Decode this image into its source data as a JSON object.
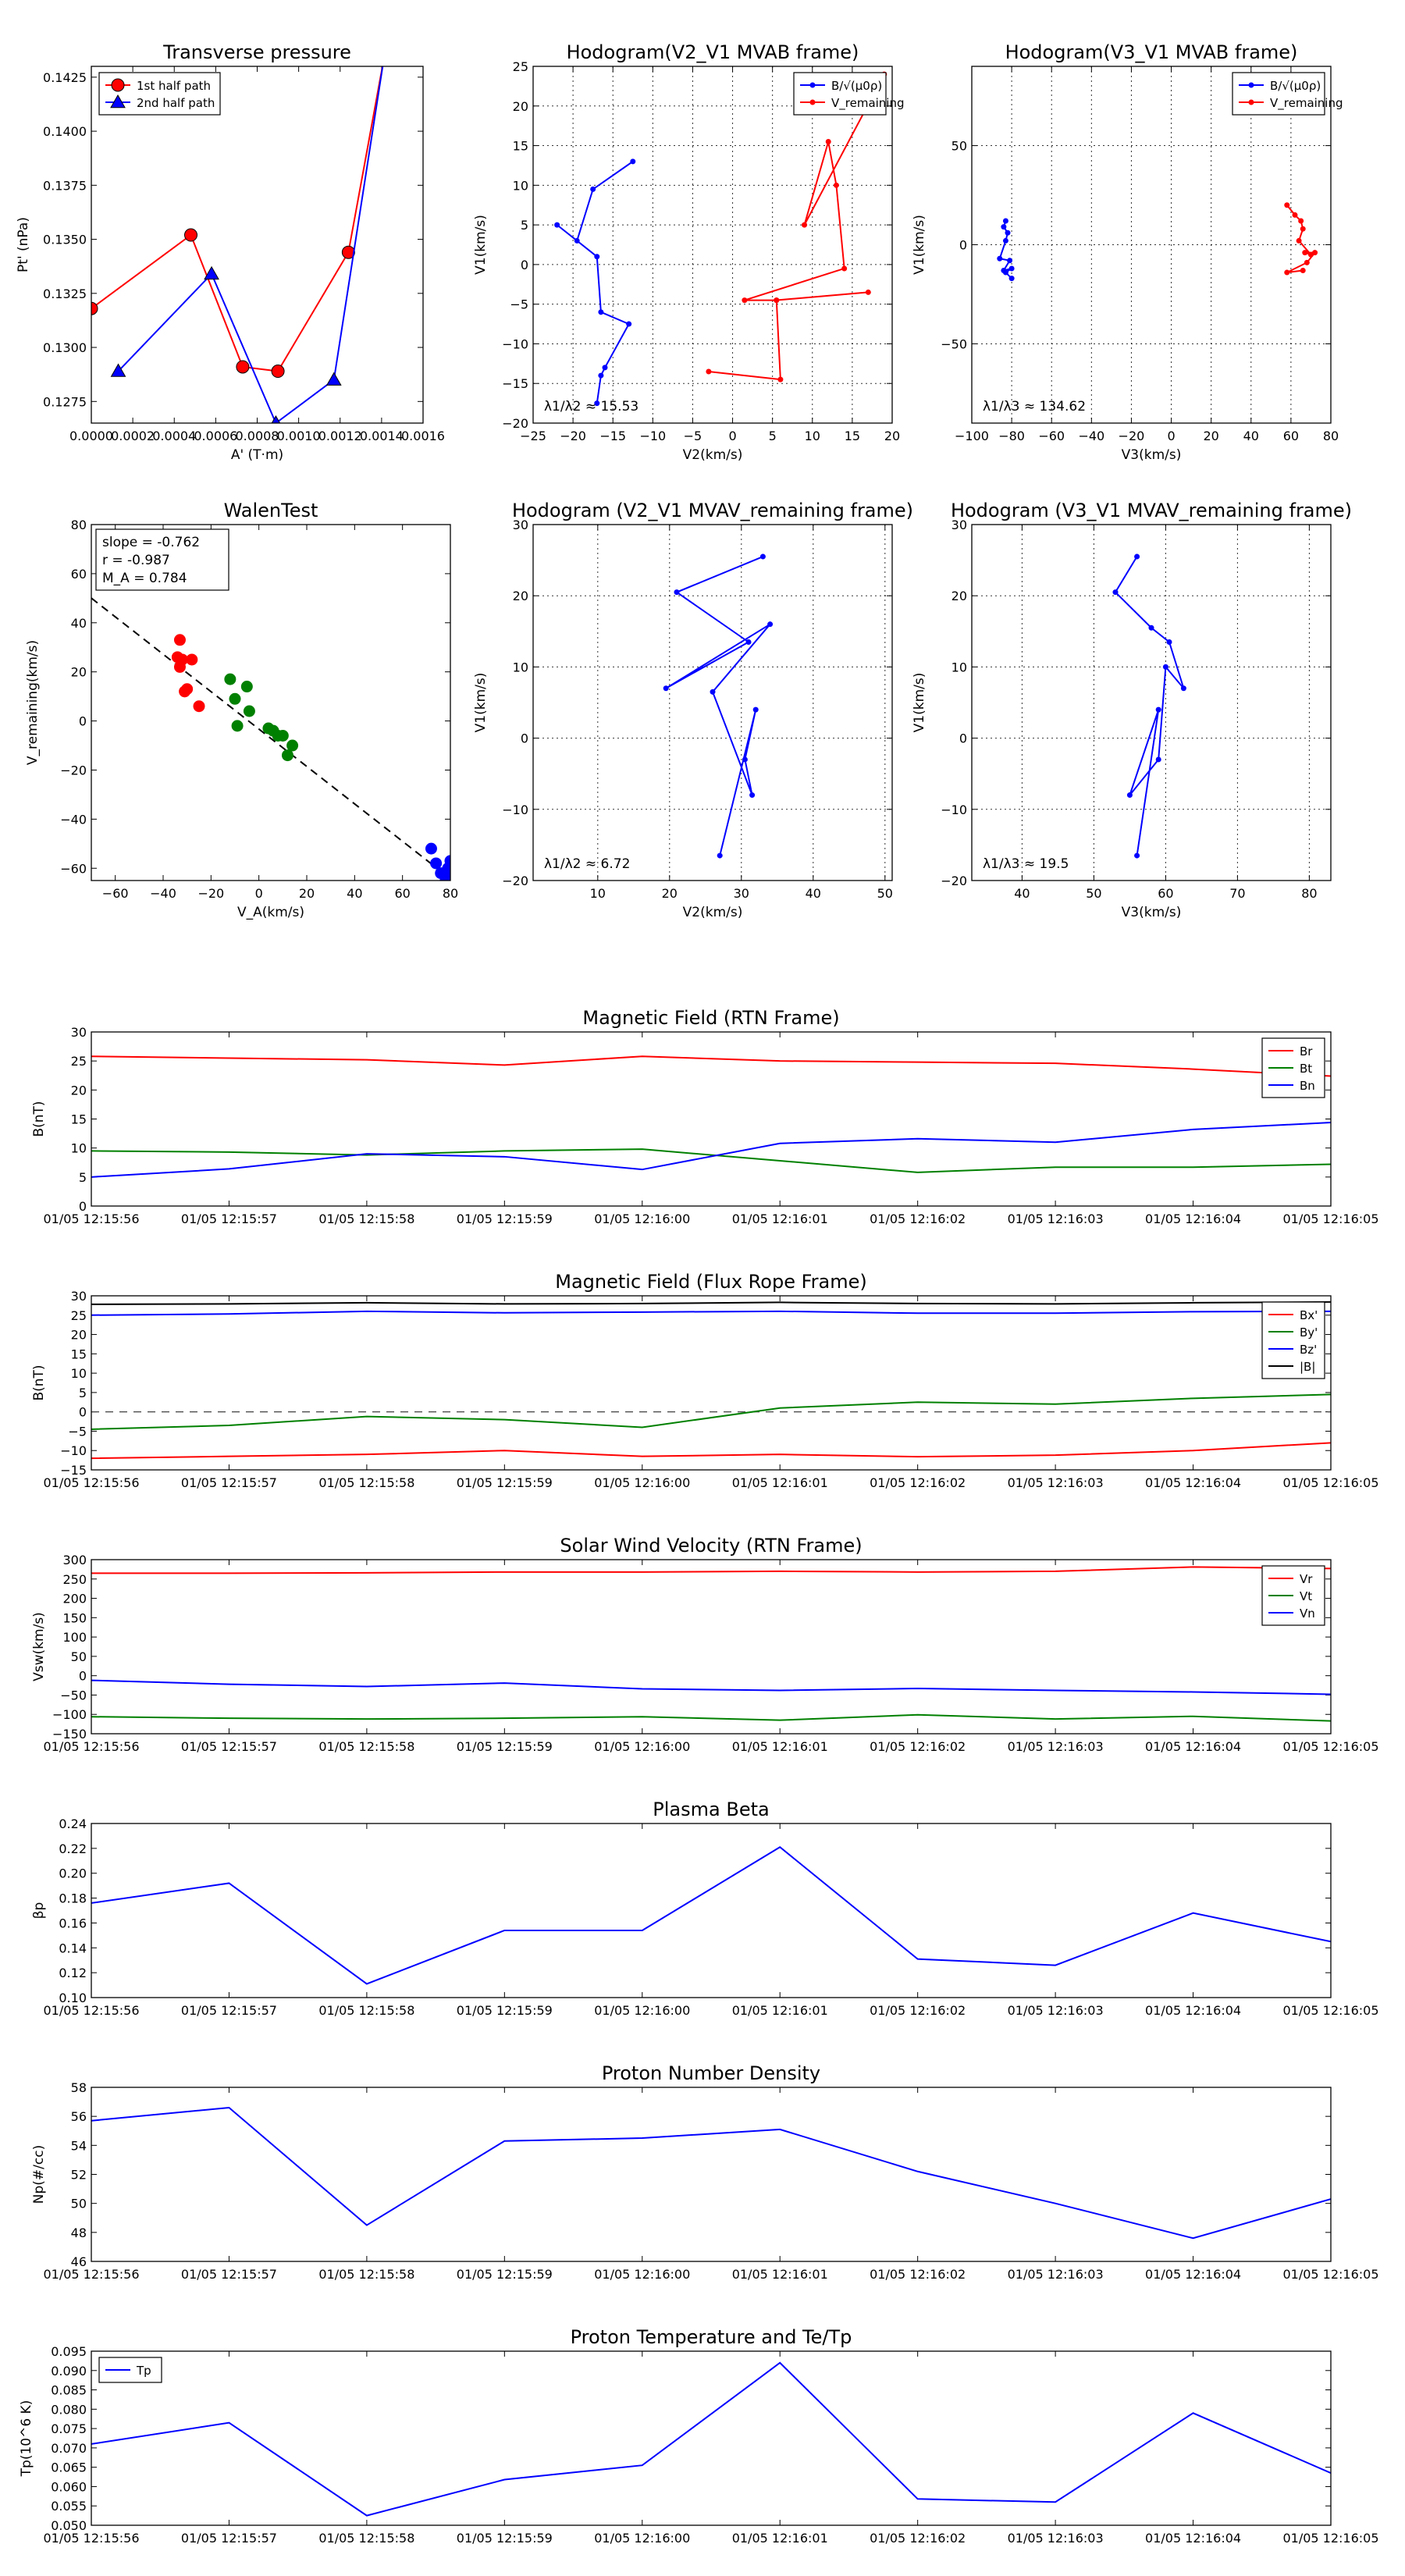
{
  "chart_data": [
    {
      "id": "p_tp",
      "type": "line",
      "title": "Transverse pressure",
      "xlabel": "A' (T·m)",
      "ylabel": "Pt' (nPa)",
      "xlim": [
        0,
        0.0016
      ],
      "ylim": [
        0.1265,
        0.143
      ],
      "xticks": [
        0,
        0.0002,
        0.0004,
        0.0006,
        0.0008,
        0.001,
        0.0012,
        0.0014,
        0.0016
      ],
      "xtick_labels": [
        "0.0000",
        "0.0002",
        "0.0004",
        "0.0006",
        "0.0008",
        "0.0010",
        "0.0012",
        "0.0014",
        "0.0016"
      ],
      "yticks": [
        0.1275,
        0.13,
        0.1325,
        0.135,
        0.1375,
        0.14,
        0.1425
      ],
      "ytick_labels": [
        "0.1275",
        "0.1300",
        "0.1325",
        "0.1350",
        "0.1375",
        "0.1400",
        "0.1425"
      ],
      "legend": {
        "placement": "top-left",
        "entries": [
          "1st half path",
          "2nd half path"
        ]
      },
      "series": [
        {
          "name": "1st half path",
          "color": "#ff0000",
          "marker": "circle",
          "x": [
            0.0,
            0.00048,
            0.00073,
            0.0009,
            0.00124,
            0.00141
          ],
          "y": [
            0.1318,
            0.1352,
            0.1291,
            0.1289,
            0.1344,
            0.1433
          ]
        },
        {
          "name": "2nd half path",
          "color": "#0000ff",
          "marker": "triangle",
          "x": [
            0.00013,
            0.00058,
            0.00089,
            0.00117,
            0.00141
          ],
          "y": [
            0.1289,
            0.1334,
            0.1265,
            0.1285,
            0.1433
          ]
        }
      ]
    },
    {
      "id": "p_h1",
      "type": "line",
      "title": "Hodogram(V2_V1 MVAB frame)",
      "xlabel": "V2(km/s)",
      "ylabel": "V1(km/s)",
      "xlim": [
        -25,
        20
      ],
      "ylim": [
        -20,
        25
      ],
      "xticks": [
        -25,
        -20,
        -15,
        -10,
        -5,
        0,
        5,
        10,
        15,
        20
      ],
      "yticks": [
        -20,
        -15,
        -10,
        -5,
        0,
        5,
        10,
        15,
        20,
        25
      ],
      "grid": true,
      "annotation": "λ1/λ2 ≈ 15.53",
      "legend": {
        "placement": "top-right",
        "entries": [
          "B/√(μ0ρ)",
          "V_remaining"
        ]
      },
      "series": [
        {
          "name": "B/√(μ0ρ)",
          "color": "#0000ff",
          "x": [
            -12.5,
            -17.5,
            -19.5,
            -22,
            -17,
            -16.5,
            -13,
            -16,
            -16.5,
            -17
          ],
          "y": [
            13,
            9.5,
            3,
            5,
            1,
            -6,
            -7.5,
            -13,
            -14,
            -17.5
          ]
        },
        {
          "name": "V_remaining",
          "color": "#ff0000",
          "x": [
            19,
            9,
            12,
            13,
            14,
            1.5,
            5.5,
            17,
            5.5,
            6,
            -3
          ],
          "y": [
            24,
            5,
            15.5,
            10,
            -0.5,
            -4.5,
            -4.5,
            -3.5,
            -4.5,
            -14.5,
            -13.5
          ]
        }
      ]
    },
    {
      "id": "p_h2",
      "type": "line",
      "title": "Hodogram(V3_V1 MVAB frame)",
      "xlabel": "V3(km/s)",
      "ylabel": "V1(km/s)",
      "xlim": [
        -100,
        80
      ],
      "ylim": [
        -90,
        90
      ],
      "xticks": [
        -100,
        -80,
        -60,
        -40,
        -20,
        0,
        20,
        40,
        60,
        80
      ],
      "yticks": [
        -50,
        0,
        50
      ],
      "grid": true,
      "annotation": "λ1/λ3 ≈ 134.62",
      "legend": {
        "placement": "top-right",
        "entries": [
          "B/√(μ0ρ)",
          "V_remaining"
        ]
      },
      "series": [
        {
          "name": "B/√(μ0ρ)",
          "color": "#0000ff",
          "x": [
            -83,
            -84,
            -82,
            -83,
            -86,
            -81,
            -84,
            -80,
            -83,
            -80
          ],
          "y": [
            12,
            9,
            6,
            2,
            -7,
            -8,
            -13,
            -12,
            -14,
            -17
          ]
        },
        {
          "name": "V_remaining",
          "color": "#ff0000",
          "x": [
            58,
            62,
            65,
            66,
            64,
            70,
            67,
            72,
            68,
            58,
            66
          ],
          "y": [
            20,
            15,
            12,
            8,
            2,
            -5,
            -4,
            -4,
            -9,
            -14,
            -13
          ]
        }
      ]
    },
    {
      "id": "p_walen",
      "type": "scatter",
      "title": "WalenTest",
      "xlabel": "V_A(km/s)",
      "ylabel": "V_remaining(km/s)",
      "xlim": [
        -70,
        80
      ],
      "ylim": [
        -65,
        80
      ],
      "xticks": [
        -60,
        -40,
        -20,
        0,
        20,
        40,
        60,
        80
      ],
      "yticks": [
        -60,
        -40,
        -20,
        0,
        20,
        40,
        60,
        80
      ],
      "stats": [
        "slope = -0.762",
        "r = -0.987",
        "M_A = 0.784"
      ],
      "fit_line": {
        "slope": -0.762,
        "intercept": -3.3
      },
      "series": [
        {
          "name": "red",
          "color": "#ff0000",
          "x": [
            -33,
            -34,
            -32,
            -33,
            -31,
            -30,
            -28,
            -25
          ],
          "y": [
            33,
            26,
            25,
            22,
            12,
            13,
            25,
            6
          ]
        },
        {
          "name": "green",
          "color": "#008000",
          "x": [
            -12,
            -10,
            -9,
            -5,
            -4,
            4,
            6,
            8,
            10,
            12,
            14
          ],
          "y": [
            17,
            9,
            -2,
            14,
            4,
            -3,
            -4,
            -6,
            -6,
            -14,
            -10
          ]
        },
        {
          "name": "blue",
          "color": "#0000ff",
          "x": [
            72,
            74,
            76,
            78,
            79,
            80,
            81,
            80,
            78
          ],
          "y": [
            -52,
            -58,
            -62,
            -65,
            -60,
            -57,
            -63,
            -65,
            -62
          ]
        }
      ]
    },
    {
      "id": "p_h3",
      "type": "line",
      "title": "Hodogram (V2_V1 MVAV_remaining frame)",
      "xlabel": "V2(km/s)",
      "ylabel": "V1(km/s)",
      "xlim": [
        1,
        51
      ],
      "ylim": [
        -20,
        30
      ],
      "xticks": [
        10,
        20,
        30,
        40,
        50
      ],
      "yticks": [
        -20,
        -10,
        0,
        10,
        20,
        30
      ],
      "grid": true,
      "annotation": "λ1/λ2 ≈ 6.72",
      "series": [
        {
          "name": "path",
          "color": "#0000ff",
          "x": [
            33,
            21,
            31,
            19.5,
            34,
            26,
            31.5,
            30.5,
            32,
            27
          ],
          "y": [
            25.5,
            20.5,
            13.5,
            7,
            16,
            6.5,
            -8,
            -3,
            4,
            -16.5
          ]
        }
      ]
    },
    {
      "id": "p_h4",
      "type": "line",
      "title": "Hodogram (V3_V1 MVAV_remaining frame)",
      "xlabel": "V3(km/s)",
      "ylabel": "V1(km/s)",
      "xlim": [
        33,
        83
      ],
      "ylim": [
        -20,
        30
      ],
      "xticks": [
        40,
        50,
        60,
        70,
        80
      ],
      "yticks": [
        -20,
        -10,
        0,
        10,
        20,
        30
      ],
      "grid": true,
      "annotation": "λ1/λ3 ≈ 19.5",
      "series": [
        {
          "name": "path",
          "color": "#0000ff",
          "x": [
            56,
            53,
            58,
            60.5,
            62.5,
            60,
            59,
            55,
            59,
            56
          ],
          "y": [
            25.5,
            20.5,
            15.5,
            13.5,
            7,
            10,
            -3,
            -8,
            4,
            -16.5
          ]
        }
      ]
    },
    {
      "id": "ts_b_rtn",
      "type": "line",
      "title": "Magnetic Field (RTN Frame)",
      "xlabel": "",
      "ylabel": "B(nT)",
      "categories": [
        "01/05 12:15:56",
        "01/05 12:15:57",
        "01/05 12:15:58",
        "01/05 12:15:59",
        "01/05 12:16:00",
        "01/05 12:16:01",
        "01/05 12:16:02",
        "01/05 12:16:03",
        "01/05 12:16:04",
        "01/05 12:16:05"
      ],
      "ylim": [
        0,
        30
      ],
      "yticks": [
        0,
        5,
        10,
        15,
        20,
        25,
        30
      ],
      "legend": {
        "placement": "top-right",
        "entries": [
          "Br",
          "Bt",
          "Bn"
        ]
      },
      "series": [
        {
          "name": "Br",
          "color": "#ff0000",
          "values": [
            25.8,
            25.5,
            25.2,
            24.3,
            25.8,
            25.0,
            24.8,
            24.6,
            23.6,
            22.4
          ]
        },
        {
          "name": "Bt",
          "color": "#008000",
          "values": [
            9.5,
            9.3,
            8.8,
            9.5,
            9.8,
            7.8,
            5.8,
            6.7,
            6.7,
            7.2
          ]
        },
        {
          "name": "Bn",
          "color": "#0000ff",
          "values": [
            5.0,
            6.4,
            9.0,
            8.5,
            6.3,
            10.8,
            11.6,
            11.0,
            13.2,
            14.4
          ]
        }
      ]
    },
    {
      "id": "ts_b_fr",
      "type": "line",
      "title": "Magnetic Field (Flux Rope Frame)",
      "xlabel": "",
      "ylabel": "B(nT)",
      "categories": [
        "01/05 12:15:56",
        "01/05 12:15:57",
        "01/05 12:15:58",
        "01/05 12:15:59",
        "01/05 12:16:00",
        "01/05 12:16:01",
        "01/05 12:16:02",
        "01/05 12:16:03",
        "01/05 12:16:04",
        "01/05 12:16:05"
      ],
      "ylim": [
        -15,
        30
      ],
      "yticks": [
        -15,
        -10,
        -5,
        0,
        5,
        10,
        15,
        20,
        25,
        30
      ],
      "zero_line": true,
      "legend": {
        "placement": "top-right",
        "entries": [
          "Bx'",
          "By'",
          "Bz'",
          "|B|"
        ]
      },
      "series": [
        {
          "name": "Bx'",
          "color": "#ff0000",
          "values": [
            -12.0,
            -11.5,
            -11.0,
            -10.0,
            -11.5,
            -11.0,
            -11.6,
            -11.2,
            -10.0,
            -8.0
          ]
        },
        {
          "name": "By'",
          "color": "#008000",
          "values": [
            -4.5,
            -3.5,
            -1.2,
            -2.0,
            -4.0,
            1.0,
            2.5,
            2.0,
            3.5,
            4.5
          ]
        },
        {
          "name": "Bz'",
          "color": "#0000ff",
          "values": [
            25.0,
            25.3,
            26.0,
            25.6,
            25.8,
            26.0,
            25.5,
            25.5,
            25.9,
            26.0
          ]
        },
        {
          "name": "|B|",
          "color": "#000000",
          "values": [
            27.8,
            27.9,
            28.2,
            27.9,
            28.0,
            28.3,
            28.0,
            27.9,
            28.2,
            28.4
          ]
        }
      ]
    },
    {
      "id": "ts_vsw",
      "type": "line",
      "title": "Solar Wind Velocity (RTN Frame)",
      "xlabel": "",
      "ylabel": "Vsw(km/s)",
      "categories": [
        "01/05 12:15:56",
        "01/05 12:15:57",
        "01/05 12:15:58",
        "01/05 12:15:59",
        "01/05 12:16:00",
        "01/05 12:16:01",
        "01/05 12:16:02",
        "01/05 12:16:03",
        "01/05 12:16:04",
        "01/05 12:16:05"
      ],
      "ylim": [
        -150,
        300
      ],
      "yticks": [
        -150,
        -100,
        -50,
        0,
        50,
        100,
        150,
        200,
        250,
        300
      ],
      "legend": {
        "placement": "top-right",
        "entries": [
          "Vr",
          "Vt",
          "Vn"
        ]
      },
      "series": [
        {
          "name": "Vr",
          "color": "#ff0000",
          "values": [
            265,
            265,
            266,
            268,
            268,
            270,
            268,
            270,
            281,
            277
          ]
        },
        {
          "name": "Vt",
          "color": "#008000",
          "values": [
            -106,
            -110,
            -112,
            -110,
            -106,
            -115,
            -101,
            -112,
            -105,
            -117
          ]
        },
        {
          "name": "Vn",
          "color": "#0000ff",
          "values": [
            -12,
            -22,
            -28,
            -19,
            -34,
            -38,
            -33,
            -38,
            -42,
            -48
          ]
        }
      ]
    },
    {
      "id": "ts_beta",
      "type": "line",
      "title": "Plasma Beta",
      "xlabel": "",
      "ylabel": "βp",
      "categories": [
        "01/05 12:15:56",
        "01/05 12:15:57",
        "01/05 12:15:58",
        "01/05 12:15:59",
        "01/05 12:16:00",
        "01/05 12:16:01",
        "01/05 12:16:02",
        "01/05 12:16:03",
        "01/05 12:16:04",
        "01/05 12:16:05"
      ],
      "ylim": [
        0.1,
        0.24
      ],
      "yticks": [
        0.1,
        0.12,
        0.14,
        0.16,
        0.18,
        0.2,
        0.22,
        0.24
      ],
      "ytick_labels": [
        "0.10",
        "0.12",
        "0.14",
        "0.16",
        "0.18",
        "0.20",
        "0.22",
        "0.24"
      ],
      "series": [
        {
          "name": "beta",
          "color": "#0000ff",
          "values": [
            0.176,
            0.192,
            0.111,
            0.154,
            0.154,
            0.221,
            0.131,
            0.126,
            0.168,
            0.145
          ]
        }
      ]
    },
    {
      "id": "ts_np",
      "type": "line",
      "title": "Proton Number Density",
      "xlabel": "",
      "ylabel": "Np(#/cc)",
      "categories": [
        "01/05 12:15:56",
        "01/05 12:15:57",
        "01/05 12:15:58",
        "01/05 12:15:59",
        "01/05 12:16:00",
        "01/05 12:16:01",
        "01/05 12:16:02",
        "01/05 12:16:03",
        "01/05 12:16:04",
        "01/05 12:16:05"
      ],
      "ylim": [
        46,
        58
      ],
      "yticks": [
        46,
        48,
        50,
        52,
        54,
        56,
        58
      ],
      "series": [
        {
          "name": "Np",
          "color": "#0000ff",
          "values": [
            55.7,
            56.6,
            48.5,
            54.3,
            54.5,
            55.1,
            52.2,
            50.0,
            47.6,
            50.3
          ]
        }
      ]
    },
    {
      "id": "ts_tp",
      "type": "line",
      "title": "Proton Temperature and Te/Tp",
      "xlabel": "",
      "ylabel": "Tp(10^6 K)",
      "categories": [
        "01/05 12:15:56",
        "01/05 12:15:57",
        "01/05 12:15:58",
        "01/05 12:15:59",
        "01/05 12:16:00",
        "01/05 12:16:01",
        "01/05 12:16:02",
        "01/05 12:16:03",
        "01/05 12:16:04",
        "01/05 12:16:05"
      ],
      "ylim": [
        0.05,
        0.095
      ],
      "yticks": [
        0.05,
        0.055,
        0.06,
        0.065,
        0.07,
        0.075,
        0.08,
        0.085,
        0.09,
        0.095
      ],
      "ytick_labels": [
        "0.050",
        "0.055",
        "0.060",
        "0.065",
        "0.070",
        "0.075",
        "0.080",
        "0.085",
        "0.090",
        "0.095"
      ],
      "legend": {
        "placement": "top-left",
        "entries": [
          "Tp"
        ]
      },
      "series": [
        {
          "name": "Tp",
          "color": "#0000ff",
          "values": [
            0.071,
            0.0765,
            0.0525,
            0.0618,
            0.0655,
            0.092,
            0.0568,
            0.056,
            0.079,
            0.0635
          ]
        }
      ]
    }
  ]
}
